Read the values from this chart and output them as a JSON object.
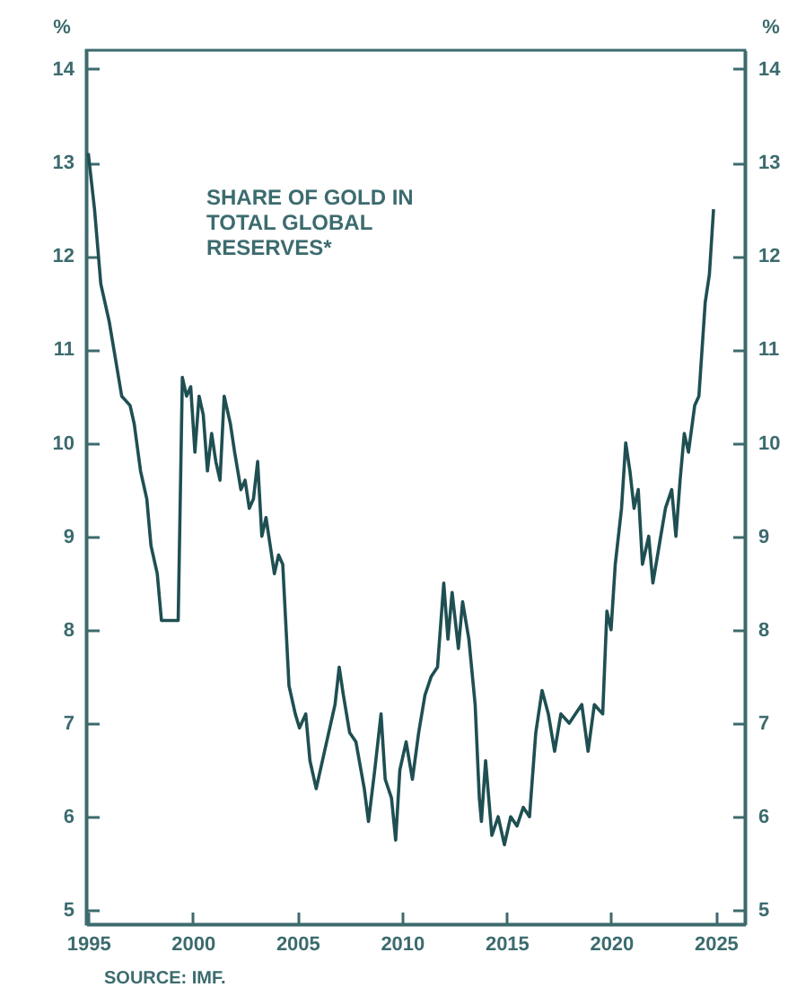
{
  "chart_data": {
    "type": "line",
    "title": "SHARE OF GOLD IN TOTAL GLOBAL RESERVES*",
    "ylabel": "%",
    "y2label": "%",
    "annotations": [
      "SOURCE: IMF."
    ],
    "x": [
      1995.0,
      1995.3,
      1995.6,
      1996.0,
      1996.3,
      1996.6,
      1997.0,
      1997.2,
      1997.5,
      1997.8,
      1998.0,
      1998.3,
      1998.5,
      1999.0,
      1999.3,
      1999.5,
      1999.7,
      1999.9,
      2000.1,
      2000.3,
      2000.5,
      2000.7,
      2000.9,
      2001.1,
      2001.3,
      2001.5,
      2001.8,
      2002.0,
      2002.3,
      2002.5,
      2002.7,
      2002.9,
      2003.1,
      2003.3,
      2003.5,
      2003.7,
      2003.9,
      2004.1,
      2004.3,
      2004.6,
      2004.9,
      2005.1,
      2005.4,
      2005.6,
      2005.9,
      2006.2,
      2006.5,
      2006.8,
      2007.0,
      2007.2,
      2007.5,
      2007.8,
      2008.2,
      2008.4,
      2008.7,
      2009.0,
      2009.2,
      2009.5,
      2009.7,
      2009.9,
      2010.2,
      2010.5,
      2010.8,
      2011.1,
      2011.4,
      2011.7,
      2012.0,
      2012.2,
      2012.4,
      2012.7,
      2012.9,
      2013.2,
      2013.5,
      2013.7,
      2013.8,
      2014.0,
      2014.3,
      2014.6,
      2014.9,
      2015.2,
      2015.5,
      2015.8,
      2016.1,
      2016.4,
      2016.7,
      2017.0,
      2017.3,
      2017.6,
      2018.0,
      2018.3,
      2018.6,
      2018.9,
      2019.2,
      2019.6,
      2019.8,
      2020.0,
      2020.2,
      2020.5,
      2020.7,
      2020.9,
      2021.1,
      2021.3,
      2021.5,
      2021.8,
      2022.0,
      2022.3,
      2022.6,
      2022.9,
      2023.1,
      2023.3,
      2023.5,
      2023.7,
      2024.0,
      2024.2,
      2024.5,
      2024.7,
      2024.9
    ],
    "series": [
      {
        "color": "#1f4f52",
        "values": [
          13.1,
          12.5,
          11.7,
          11.3,
          10.9,
          10.5,
          10.4,
          10.2,
          9.7,
          9.4,
          8.9,
          8.6,
          8.1,
          8.1,
          8.1,
          10.7,
          10.5,
          10.6,
          9.9,
          10.5,
          10.3,
          9.7,
          10.1,
          9.8,
          9.6,
          10.5,
          10.2,
          9.9,
          9.5,
          9.6,
          9.3,
          9.4,
          9.8,
          9.0,
          9.2,
          8.9,
          8.6,
          8.8,
          8.7,
          7.4,
          7.1,
          6.95,
          7.1,
          6.6,
          6.3,
          6.6,
          6.9,
          7.2,
          7.6,
          7.3,
          6.9,
          6.8,
          6.3,
          5.95,
          6.5,
          7.1,
          6.4,
          6.2,
          5.75,
          6.5,
          6.8,
          6.4,
          6.9,
          7.3,
          7.5,
          7.6,
          8.5,
          7.9,
          8.4,
          7.8,
          8.3,
          7.9,
          7.2,
          6.2,
          5.95,
          6.6,
          5.8,
          6.0,
          5.7,
          6.0,
          5.9,
          6.1,
          6.0,
          6.9,
          7.35,
          7.1,
          6.7,
          7.1,
          7.0,
          7.1,
          7.2,
          6.7,
          7.2,
          7.1,
          8.2,
          8.0,
          8.7,
          9.3,
          10.0,
          9.7,
          9.3,
          9.5,
          8.7,
          9.0,
          8.5,
          8.9,
          9.3,
          9.5,
          9.0,
          9.6,
          10.1,
          9.9,
          10.4,
          10.5,
          11.5,
          11.8,
          12.5
        ]
      }
    ],
    "xlim": [
      1994.9,
      2026.4
    ],
    "xticks": [
      1995,
      2000,
      2005,
      2010,
      2015,
      2020,
      2025
    ],
    "ylim": [
      4.85,
      14.2
    ],
    "yticks": [
      5,
      6,
      7,
      8,
      9,
      10,
      11,
      12,
      13,
      14
    ],
    "y2lim": [
      4.85,
      14.2
    ],
    "y2ticks": [
      5,
      6,
      7,
      8,
      9,
      10,
      11,
      12,
      13,
      14
    ],
    "grid": false
  }
}
